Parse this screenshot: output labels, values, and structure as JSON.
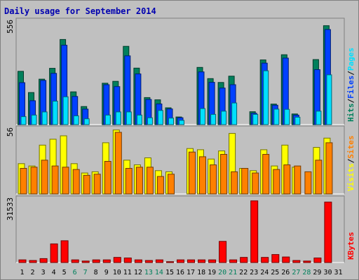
{
  "chart_data": {
    "type": "bar",
    "title": "Daily usage for September 2014",
    "days": [
      "1",
      "2",
      "3",
      "4",
      "5",
      "6",
      "7",
      "8",
      "9",
      "10",
      "11",
      "12",
      "13",
      "14",
      "15",
      "16",
      "17",
      "18",
      "19",
      "20",
      "21",
      "22",
      "23",
      "24",
      "25",
      "26",
      "27",
      "28",
      "29",
      "30",
      "31"
    ],
    "weekend_days": [
      "6",
      "7",
      "13",
      "14",
      "20",
      "21",
      "27",
      "28"
    ],
    "panels": [
      {
        "name": "pages-files-hits",
        "ymax": 556,
        "ymax_label": "556",
        "axis_labels": [
          {
            "text": "Pages",
            "color": "#00e0ff"
          },
          {
            "text": "/",
            "color": "#000000"
          },
          {
            "text": "Files",
            "color": "#0040ff"
          },
          {
            "text": "/",
            "color": "#000000"
          },
          {
            "text": "Hits",
            "color": "#00805c"
          }
        ],
        "series": [
          {
            "name": "Hits",
            "color": "#00805c",
            "values": [
              286,
              172,
              244,
              302,
              457,
              176,
              97,
              0,
              222,
              232,
              420,
              303,
              145,
              133,
              90,
              41,
              0,
              307,
              247,
              226,
              260,
              0,
              69,
              347,
              110,
              375,
              57,
              0,
              349,
              531,
              0
            ]
          },
          {
            "name": "Files",
            "color": "#0040ff",
            "values": [
              225,
              128,
              237,
              275,
              426,
              151,
              83,
              0,
              214,
              204,
              369,
              272,
              135,
              111,
              84,
              37,
              0,
              283,
              227,
              196,
              214,
              0,
              61,
              330,
              104,
              357,
              51,
              0,
              295,
              510,
              0
            ]
          },
          {
            "name": "Pages",
            "color": "#00e0ff",
            "values": [
              43,
              51,
              68,
              126,
              149,
              47,
              31,
              0,
              51,
              68,
              68,
              51,
              37,
              76,
              35,
              23,
              0,
              86,
              55,
              72,
              116,
              0,
              55,
              289,
              83,
              82,
              40,
              0,
              72,
              267,
              0
            ]
          }
        ]
      },
      {
        "name": "sites-visits",
        "ymax": 56,
        "ymax_label": "56",
        "axis_labels": [
          {
            "text": "Sites",
            "color": "#ff8000"
          },
          {
            "text": "/",
            "color": "#000000"
          },
          {
            "text": "Visits",
            "color": "#ffff00"
          }
        ],
        "series": [
          {
            "name": "Visits",
            "color": "#ffff00",
            "values": [
              26,
              24,
              42,
              47,
              50,
              26,
              18,
              19,
              44,
              55,
              29,
              25,
              31,
              20,
              19,
              0,
              39,
              38,
              30,
              37,
              52,
              22,
              20,
              38,
              24,
              42,
              23,
              0,
              40,
              48,
              0
            ]
          },
          {
            "name": "Sites",
            "color": "#ff8000",
            "values": [
              22,
              23,
              29,
              24,
              23,
              21,
              16,
              17,
              28,
              53,
              22,
              23,
              23,
              15,
              17,
              0,
              36,
              32,
              25,
              34,
              19,
              22,
              18,
              34,
              21,
              25,
              24,
              19,
              29,
              44,
              0
            ]
          }
        ]
      },
      {
        "name": "kbytes",
        "ymax": 31533,
        "ymax_label": "31533",
        "axis_labels": [
          {
            "text": "KBytes",
            "color": "#ff0000"
          }
        ],
        "series": [
          {
            "name": "KBytes",
            "color": "#ff0000",
            "values": [
              1320,
              1015,
              1930,
              9230,
              10760,
              1320,
              711,
              1320,
              1320,
              2540,
              2240,
              1320,
              1015,
              1320,
              406,
              1320,
              1320,
              1320,
              1320,
              10450,
              1320,
              2540,
              30520,
              2540,
              3960,
              2740,
              1015,
              711,
              2240,
              29910,
              0
            ]
          }
        ]
      }
    ]
  }
}
